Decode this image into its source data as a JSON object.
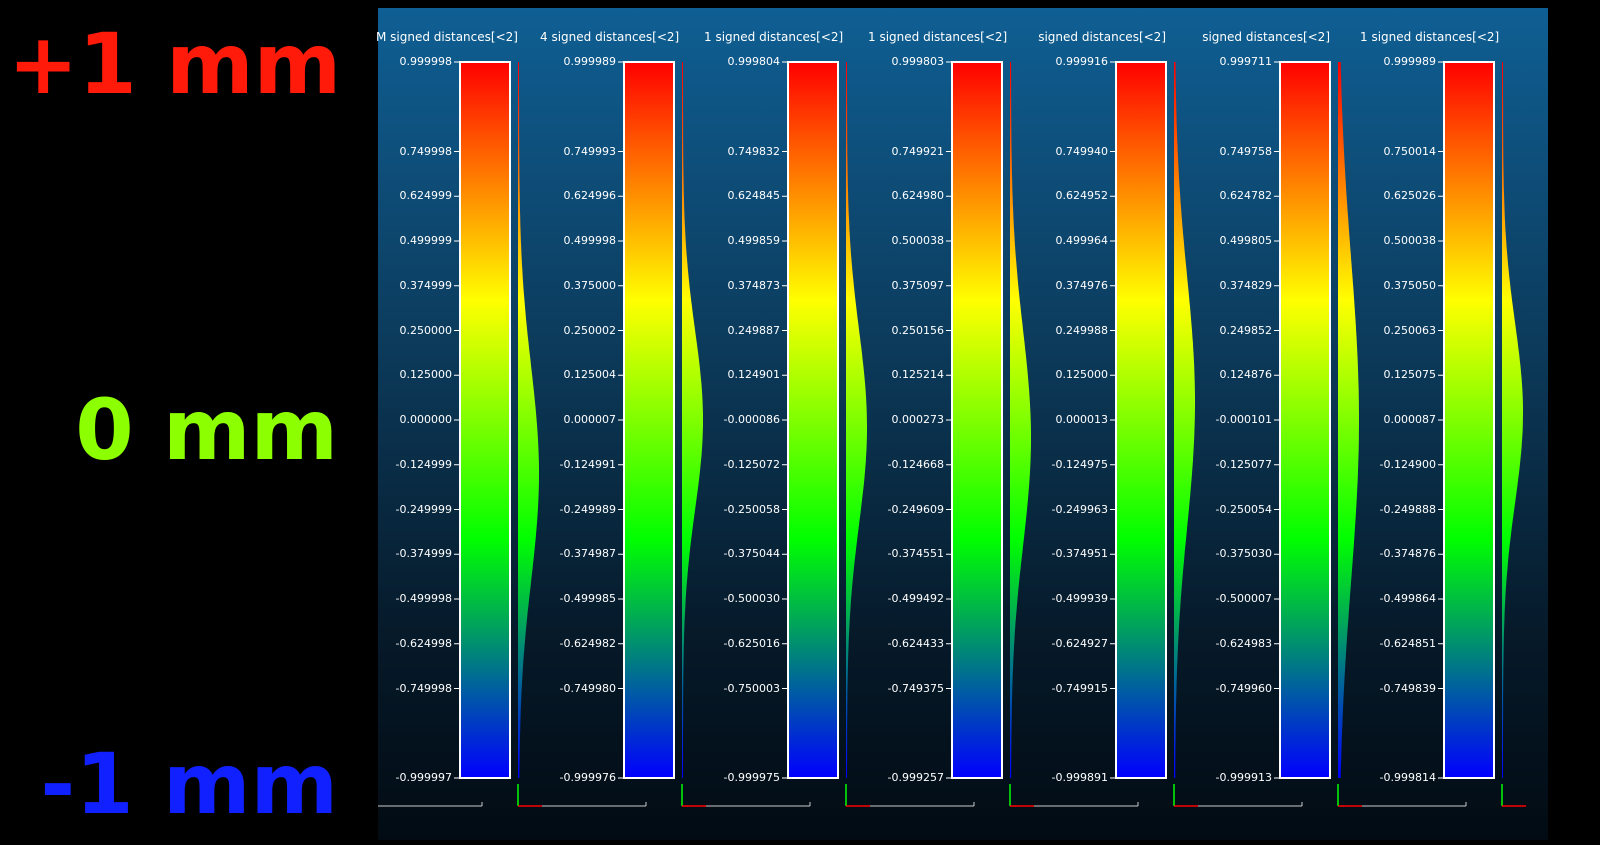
{
  "legend_labels": {
    "top": {
      "text": "+1 mm",
      "color": "#ff1a0a"
    },
    "middle": {
      "text": "0 mm",
      "color": "#8cff00"
    },
    "bottom": {
      "text": "-1 mm",
      "color": "#1020ff"
    }
  },
  "chart_data": [
    {
      "type": "histogram",
      "title": "M signed distances[<2]",
      "vmin": -1,
      "vmax": 1,
      "scale_colors": [
        "#0000ff",
        "#00ff00",
        "#ffff00",
        "#ff0000"
      ],
      "tick_labels": [
        "0.999998",
        "0.749998",
        "0.624999",
        "0.499999",
        "0.374999",
        "0.250000",
        "0.125000",
        "0.000000",
        "-0.124999",
        "-0.249999",
        "-0.374999",
        "-0.499998",
        "-0.624998",
        "-0.749998",
        "-0.999997"
      ],
      "distribution": {
        "mean": -0.15,
        "sd": 0.3,
        "peak": 1.0
      }
    },
    {
      "type": "histogram",
      "title": "4 signed distances[<2]",
      "vmin": -1,
      "vmax": 1,
      "scale_colors": [
        "#0000ff",
        "#00ff00",
        "#ffff00",
        "#ff0000"
      ],
      "tick_labels": [
        "0.999989",
        "0.749993",
        "0.624996",
        "0.499998",
        "0.375000",
        "0.250002",
        "0.125004",
        "0.000007",
        "-0.124991",
        "-0.249989",
        "-0.374987",
        "-0.499985",
        "-0.624982",
        "-0.749980",
        "-0.999976"
      ],
      "distribution": {
        "mean": 0.0,
        "sd": 0.25,
        "peak": 1.0
      }
    },
    {
      "type": "histogram",
      "title": "1 signed distances[<2]",
      "vmin": -1,
      "vmax": 1,
      "scale_colors": [
        "#0000ff",
        "#00ff00",
        "#ffff00",
        "#ff0000"
      ],
      "tick_labels": [
        "0.999804",
        "0.749832",
        "0.624845",
        "0.499859",
        "0.374873",
        "0.249887",
        "0.124901",
        "-0.000086",
        "-0.125072",
        "-0.250058",
        "-0.375044",
        "-0.500030",
        "-0.625016",
        "-0.750003",
        "-0.999975"
      ],
      "distribution": {
        "mean": -0.02,
        "sd": 0.27,
        "peak": 1.0
      }
    },
    {
      "type": "histogram",
      "title": "1 signed distances[<2]",
      "vmin": -1,
      "vmax": 1,
      "scale_colors": [
        "#0000ff",
        "#00ff00",
        "#ffff00",
        "#ff0000"
      ],
      "tick_labels": [
        "0.999803",
        "0.749921",
        "0.624980",
        "0.500038",
        "0.375097",
        "0.250156",
        "0.125214",
        "0.000273",
        "-0.124668",
        "-0.249609",
        "-0.374551",
        "-0.499492",
        "-0.624433",
        "-0.749375",
        "-0.999257"
      ],
      "distribution": {
        "mean": -0.05,
        "sd": 0.3,
        "peak": 1.0
      }
    },
    {
      "type": "histogram",
      "title": "signed distances[<2]",
      "vmin": -1,
      "vmax": 1,
      "scale_colors": [
        "#0000ff",
        "#00ff00",
        "#ffff00",
        "#ff0000"
      ],
      "tick_labels": [
        "0.999916",
        "0.749940",
        "0.624952",
        "0.499964",
        "0.374976",
        "0.249988",
        "0.125000",
        "0.000013",
        "-0.124975",
        "-0.249963",
        "-0.374951",
        "-0.499939",
        "-0.624927",
        "-0.749915",
        "-0.999891"
      ],
      "distribution": {
        "mean": 0.05,
        "sd": 0.35,
        "peak": 1.0
      }
    },
    {
      "type": "histogram",
      "title": "signed distances[<2]",
      "vmin": -1,
      "vmax": 1,
      "scale_colors": [
        "#0000ff",
        "#00ff00",
        "#ffff00",
        "#ff0000"
      ],
      "tick_labels": [
        "0.999711",
        "0.749758",
        "0.624782",
        "0.499805",
        "0.374829",
        "0.249852",
        "0.124876",
        "-0.000101",
        "-0.125077",
        "-0.250054",
        "-0.375030",
        "-0.500007",
        "-0.624983",
        "-0.749960",
        "-0.999913"
      ],
      "distribution": {
        "mean": 0.0,
        "sd": 0.45,
        "peak": 1.0
      }
    },
    {
      "type": "histogram",
      "title": "1 signed distances[<2]",
      "vmin": -1,
      "vmax": 1,
      "scale_colors": [
        "#0000ff",
        "#00ff00",
        "#ffff00",
        "#ff0000"
      ],
      "tick_labels": [
        "0.999989",
        "0.750014",
        "0.625026",
        "0.500038",
        "0.375050",
        "0.250063",
        "0.125075",
        "0.000087",
        "-0.124900",
        "-0.249888",
        "-0.374876",
        "-0.499864",
        "-0.624851",
        "-0.749839",
        "-0.999814"
      ],
      "distribution": {
        "mean": 0.02,
        "sd": 0.25,
        "peak": 1.0
      }
    }
  ]
}
